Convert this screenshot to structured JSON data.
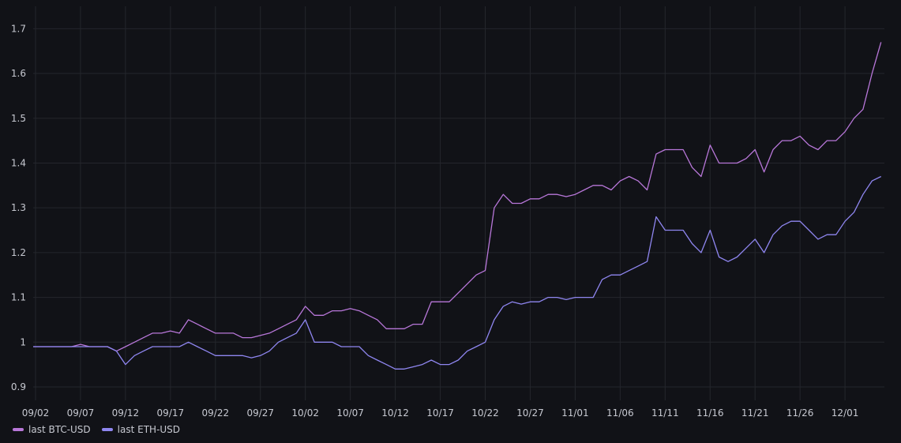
{
  "chart_data": {
    "type": "line",
    "title": "",
    "xlabel": "",
    "ylabel": "",
    "x_ticks": [
      "09/02",
      "09/07",
      "09/12",
      "09/17",
      "09/22",
      "09/27",
      "10/02",
      "10/07",
      "10/12",
      "10/17",
      "10/22",
      "10/27",
      "11/01",
      "11/06",
      "11/11",
      "11/16",
      "11/21",
      "11/26",
      "12/01"
    ],
    "y_ticks": [
      "0.9",
      "1",
      "1.1",
      "1.2",
      "1.3",
      "1.4",
      "1.5",
      "1.6",
      "1.7"
    ],
    "ylim": [
      0.87,
      1.75
    ],
    "grid": true,
    "legend_position": "bottom-left",
    "series": [
      {
        "name": "last BTC-USD",
        "color": "#b877d9",
        "x": [
          "09/01",
          "09/02",
          "09/04",
          "09/06",
          "09/07",
          "09/08",
          "09/10",
          "09/11",
          "09/12",
          "09/13",
          "09/14",
          "09/15",
          "09/16",
          "09/17",
          "09/18",
          "09/19",
          "09/20",
          "09/21",
          "09/22",
          "09/23",
          "09/24",
          "09/25",
          "09/26",
          "09/27",
          "09/28",
          "09/29",
          "09/30",
          "10/01",
          "10/02",
          "10/03",
          "10/04",
          "10/05",
          "10/06",
          "10/07",
          "10/08",
          "10/09",
          "10/10",
          "10/11",
          "10/12",
          "10/13",
          "10/14",
          "10/15",
          "10/16",
          "10/17",
          "10/18",
          "10/19",
          "10/20",
          "10/21",
          "10/22",
          "10/23",
          "10/24",
          "10/25",
          "10/26",
          "10/27",
          "10/28",
          "10/29",
          "10/30",
          "10/31",
          "11/01",
          "11/02",
          "11/03",
          "11/04",
          "11/05",
          "11/06",
          "11/07",
          "11/08",
          "11/09",
          "11/10",
          "11/11",
          "11/12",
          "11/13",
          "11/14",
          "11/15",
          "11/16",
          "11/17",
          "11/18",
          "11/19",
          "11/20",
          "11/21",
          "11/22",
          "11/23",
          "11/24",
          "11/25",
          "11/26",
          "11/27",
          "11/28",
          "11/29",
          "11/30",
          "12/01",
          "12/02",
          "12/03",
          "12/04",
          "12/05"
        ],
        "y": [
          0.99,
          0.99,
          0.99,
          0.99,
          0.995,
          0.99,
          0.99,
          0.98,
          0.99,
          1.0,
          1.01,
          1.02,
          1.02,
          1.025,
          1.02,
          1.05,
          1.04,
          1.03,
          1.02,
          1.02,
          1.02,
          1.01,
          1.01,
          1.015,
          1.02,
          1.03,
          1.04,
          1.05,
          1.08,
          1.06,
          1.06,
          1.07,
          1.07,
          1.075,
          1.07,
          1.06,
          1.05,
          1.03,
          1.03,
          1.03,
          1.04,
          1.04,
          1.09,
          1.09,
          1.09,
          1.11,
          1.13,
          1.15,
          1.16,
          1.3,
          1.33,
          1.31,
          1.31,
          1.32,
          1.32,
          1.33,
          1.33,
          1.325,
          1.33,
          1.34,
          1.35,
          1.35,
          1.34,
          1.36,
          1.37,
          1.36,
          1.34,
          1.42,
          1.43,
          1.43,
          1.43,
          1.39,
          1.37,
          1.44,
          1.4,
          1.4,
          1.4,
          1.41,
          1.43,
          1.38,
          1.43,
          1.45,
          1.45,
          1.46,
          1.44,
          1.43,
          1.45,
          1.45,
          1.47,
          1.5,
          1.52,
          1.6,
          1.67
        ]
      },
      {
        "name": "last ETH-USD",
        "color": "#8f86f0",
        "x": [
          "09/01",
          "09/02",
          "09/04",
          "09/06",
          "09/07",
          "09/08",
          "09/10",
          "09/11",
          "09/12",
          "09/13",
          "09/14",
          "09/15",
          "09/16",
          "09/17",
          "09/18",
          "09/19",
          "09/20",
          "09/21",
          "09/22",
          "09/23",
          "09/24",
          "09/25",
          "09/26",
          "09/27",
          "09/28",
          "09/29",
          "09/30",
          "10/01",
          "10/02",
          "10/03",
          "10/04",
          "10/05",
          "10/06",
          "10/07",
          "10/08",
          "10/09",
          "10/10",
          "10/11",
          "10/12",
          "10/13",
          "10/14",
          "10/15",
          "10/16",
          "10/17",
          "10/18",
          "10/19",
          "10/20",
          "10/21",
          "10/22",
          "10/23",
          "10/24",
          "10/25",
          "10/26",
          "10/27",
          "10/28",
          "10/29",
          "10/30",
          "10/31",
          "11/01",
          "11/02",
          "11/03",
          "11/04",
          "11/05",
          "11/06",
          "11/07",
          "11/08",
          "11/09",
          "11/10",
          "11/11",
          "11/12",
          "11/13",
          "11/14",
          "11/15",
          "11/16",
          "11/17",
          "11/18",
          "11/19",
          "11/20",
          "11/21",
          "11/22",
          "11/23",
          "11/24",
          "11/25",
          "11/26",
          "11/27",
          "11/28",
          "11/29",
          "11/30",
          "12/01",
          "12/02",
          "12/03",
          "12/04",
          "12/05"
        ],
        "y": [
          0.99,
          0.99,
          0.99,
          0.99,
          0.99,
          0.99,
          0.99,
          0.98,
          0.95,
          0.97,
          0.98,
          0.99,
          0.99,
          0.99,
          0.99,
          1.0,
          0.99,
          0.98,
          0.97,
          0.97,
          0.97,
          0.97,
          0.965,
          0.97,
          0.98,
          1.0,
          1.01,
          1.02,
          1.05,
          1.0,
          1.0,
          1.0,
          0.99,
          0.99,
          0.99,
          0.97,
          0.96,
          0.95,
          0.94,
          0.94,
          0.945,
          0.95,
          0.96,
          0.95,
          0.95,
          0.96,
          0.98,
          0.99,
          1.0,
          1.05,
          1.08,
          1.09,
          1.085,
          1.09,
          1.09,
          1.1,
          1.1,
          1.095,
          1.1,
          1.1,
          1.1,
          1.14,
          1.15,
          1.15,
          1.16,
          1.17,
          1.18,
          1.28,
          1.25,
          1.25,
          1.25,
          1.22,
          1.2,
          1.25,
          1.19,
          1.18,
          1.19,
          1.21,
          1.23,
          1.2,
          1.24,
          1.26,
          1.27,
          1.27,
          1.25,
          1.23,
          1.24,
          1.24,
          1.27,
          1.29,
          1.33,
          1.36,
          1.37
        ]
      }
    ]
  }
}
